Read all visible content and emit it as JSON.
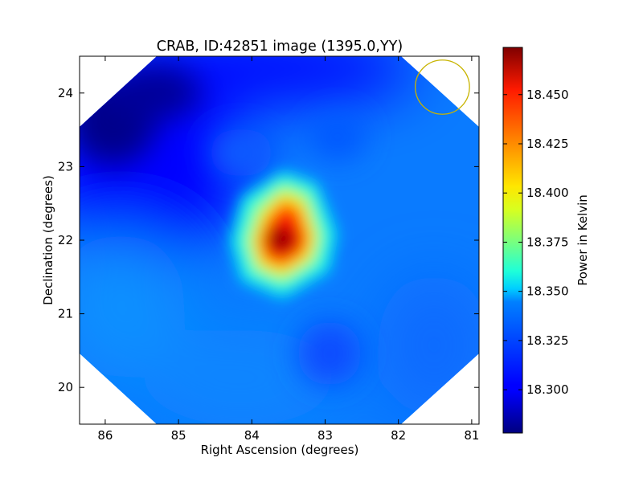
{
  "chart_data": {
    "type": "heatmap",
    "title": "CRAB, ID:42851 image (1395.0,YY)",
    "xlabel": "Right Ascension (degrees)",
    "ylabel": "Declination (degrees)",
    "xlim": [
      86.35,
      80.9
    ],
    "ylim": [
      19.5,
      24.5
    ],
    "x_ticks": [
      86,
      85,
      84,
      83,
      82,
      81
    ],
    "y_ticks": [
      20,
      21,
      22,
      23,
      24
    ],
    "colormap": "jet",
    "colorbar": {
      "label": "Power in Kelvin",
      "range": [
        18.278,
        18.474
      ],
      "ticks": [
        "18.300",
        "18.325",
        "18.350",
        "18.375",
        "18.400",
        "18.425",
        "18.450"
      ]
    },
    "peak": {
      "ra": 83.6,
      "dec": 22.0,
      "value": 18.47
    },
    "beam_circle": {
      "ra": 81.4,
      "dec": 24.08,
      "radius_deg": 0.37,
      "color": "#c8b400"
    },
    "masked_corners": "white"
  }
}
